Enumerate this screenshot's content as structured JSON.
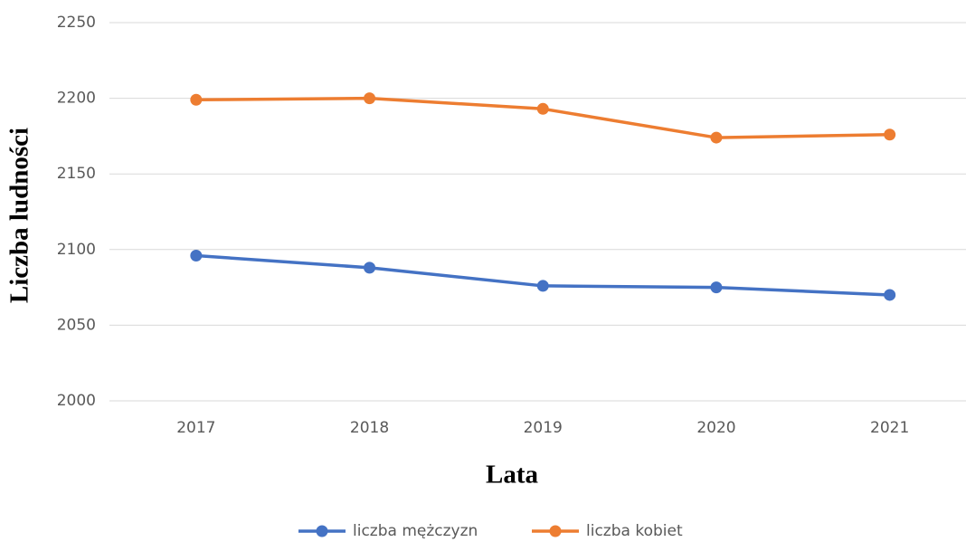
{
  "chart_data": {
    "type": "line",
    "categories": [
      "2017",
      "2018",
      "2019",
      "2020",
      "2021"
    ],
    "series": [
      {
        "name": "liczba mężczyzn",
        "color": "#4472c4",
        "values": [
          2096,
          2088,
          2076,
          2075,
          2070
        ]
      },
      {
        "name": "liczba kobiet",
        "color": "#ed7d31",
        "values": [
          2199,
          2200,
          2193,
          2174,
          2176
        ]
      }
    ],
    "xlabel": "Lata",
    "ylabel": "Liczba ludności",
    "ylim": [
      2000,
      2250
    ],
    "yticks": [
      2000,
      2050,
      2100,
      2150,
      2200,
      2250
    ],
    "grid": true,
    "legend": "bottom"
  }
}
